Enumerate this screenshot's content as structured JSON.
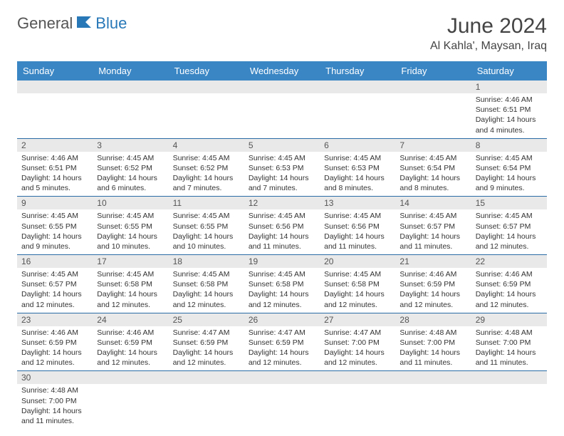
{
  "logo": {
    "text1": "General",
    "text2": "Blue"
  },
  "header": {
    "month_title": "June 2024",
    "location": "Al Kahla', Maysan, Iraq"
  },
  "colors": {
    "header_bg": "#3a86c5",
    "header_text": "#ffffff",
    "daynum_bg": "#e9e9e9",
    "cell_border": "#2a6ca5",
    "logo_gray": "#555555",
    "logo_blue": "#2878b8"
  },
  "weekdays": [
    "Sunday",
    "Monday",
    "Tuesday",
    "Wednesday",
    "Thursday",
    "Friday",
    "Saturday"
  ],
  "weeks": [
    [
      null,
      null,
      null,
      null,
      null,
      null,
      {
        "n": "1",
        "sr": "Sunrise: 4:46 AM",
        "ss": "Sunset: 6:51 PM",
        "dl": "Daylight: 14 hours and 4 minutes."
      }
    ],
    [
      {
        "n": "2",
        "sr": "Sunrise: 4:46 AM",
        "ss": "Sunset: 6:51 PM",
        "dl": "Daylight: 14 hours and 5 minutes."
      },
      {
        "n": "3",
        "sr": "Sunrise: 4:45 AM",
        "ss": "Sunset: 6:52 PM",
        "dl": "Daylight: 14 hours and 6 minutes."
      },
      {
        "n": "4",
        "sr": "Sunrise: 4:45 AM",
        "ss": "Sunset: 6:52 PM",
        "dl": "Daylight: 14 hours and 7 minutes."
      },
      {
        "n": "5",
        "sr": "Sunrise: 4:45 AM",
        "ss": "Sunset: 6:53 PM",
        "dl": "Daylight: 14 hours and 7 minutes."
      },
      {
        "n": "6",
        "sr": "Sunrise: 4:45 AM",
        "ss": "Sunset: 6:53 PM",
        "dl": "Daylight: 14 hours and 8 minutes."
      },
      {
        "n": "7",
        "sr": "Sunrise: 4:45 AM",
        "ss": "Sunset: 6:54 PM",
        "dl": "Daylight: 14 hours and 8 minutes."
      },
      {
        "n": "8",
        "sr": "Sunrise: 4:45 AM",
        "ss": "Sunset: 6:54 PM",
        "dl": "Daylight: 14 hours and 9 minutes."
      }
    ],
    [
      {
        "n": "9",
        "sr": "Sunrise: 4:45 AM",
        "ss": "Sunset: 6:55 PM",
        "dl": "Daylight: 14 hours and 9 minutes."
      },
      {
        "n": "10",
        "sr": "Sunrise: 4:45 AM",
        "ss": "Sunset: 6:55 PM",
        "dl": "Daylight: 14 hours and 10 minutes."
      },
      {
        "n": "11",
        "sr": "Sunrise: 4:45 AM",
        "ss": "Sunset: 6:55 PM",
        "dl": "Daylight: 14 hours and 10 minutes."
      },
      {
        "n": "12",
        "sr": "Sunrise: 4:45 AM",
        "ss": "Sunset: 6:56 PM",
        "dl": "Daylight: 14 hours and 11 minutes."
      },
      {
        "n": "13",
        "sr": "Sunrise: 4:45 AM",
        "ss": "Sunset: 6:56 PM",
        "dl": "Daylight: 14 hours and 11 minutes."
      },
      {
        "n": "14",
        "sr": "Sunrise: 4:45 AM",
        "ss": "Sunset: 6:57 PM",
        "dl": "Daylight: 14 hours and 11 minutes."
      },
      {
        "n": "15",
        "sr": "Sunrise: 4:45 AM",
        "ss": "Sunset: 6:57 PM",
        "dl": "Daylight: 14 hours and 12 minutes."
      }
    ],
    [
      {
        "n": "16",
        "sr": "Sunrise: 4:45 AM",
        "ss": "Sunset: 6:57 PM",
        "dl": "Daylight: 14 hours and 12 minutes."
      },
      {
        "n": "17",
        "sr": "Sunrise: 4:45 AM",
        "ss": "Sunset: 6:58 PM",
        "dl": "Daylight: 14 hours and 12 minutes."
      },
      {
        "n": "18",
        "sr": "Sunrise: 4:45 AM",
        "ss": "Sunset: 6:58 PM",
        "dl": "Daylight: 14 hours and 12 minutes."
      },
      {
        "n": "19",
        "sr": "Sunrise: 4:45 AM",
        "ss": "Sunset: 6:58 PM",
        "dl": "Daylight: 14 hours and 12 minutes."
      },
      {
        "n": "20",
        "sr": "Sunrise: 4:45 AM",
        "ss": "Sunset: 6:58 PM",
        "dl": "Daylight: 14 hours and 12 minutes."
      },
      {
        "n": "21",
        "sr": "Sunrise: 4:46 AM",
        "ss": "Sunset: 6:59 PM",
        "dl": "Daylight: 14 hours and 12 minutes."
      },
      {
        "n": "22",
        "sr": "Sunrise: 4:46 AM",
        "ss": "Sunset: 6:59 PM",
        "dl": "Daylight: 14 hours and 12 minutes."
      }
    ],
    [
      {
        "n": "23",
        "sr": "Sunrise: 4:46 AM",
        "ss": "Sunset: 6:59 PM",
        "dl": "Daylight: 14 hours and 12 minutes."
      },
      {
        "n": "24",
        "sr": "Sunrise: 4:46 AM",
        "ss": "Sunset: 6:59 PM",
        "dl": "Daylight: 14 hours and 12 minutes."
      },
      {
        "n": "25",
        "sr": "Sunrise: 4:47 AM",
        "ss": "Sunset: 6:59 PM",
        "dl": "Daylight: 14 hours and 12 minutes."
      },
      {
        "n": "26",
        "sr": "Sunrise: 4:47 AM",
        "ss": "Sunset: 6:59 PM",
        "dl": "Daylight: 14 hours and 12 minutes."
      },
      {
        "n": "27",
        "sr": "Sunrise: 4:47 AM",
        "ss": "Sunset: 7:00 PM",
        "dl": "Daylight: 14 hours and 12 minutes."
      },
      {
        "n": "28",
        "sr": "Sunrise: 4:48 AM",
        "ss": "Sunset: 7:00 PM",
        "dl": "Daylight: 14 hours and 11 minutes."
      },
      {
        "n": "29",
        "sr": "Sunrise: 4:48 AM",
        "ss": "Sunset: 7:00 PM",
        "dl": "Daylight: 14 hours and 11 minutes."
      }
    ],
    [
      {
        "n": "30",
        "sr": "Sunrise: 4:48 AM",
        "ss": "Sunset: 7:00 PM",
        "dl": "Daylight: 14 hours and 11 minutes."
      },
      null,
      null,
      null,
      null,
      null,
      null
    ]
  ]
}
